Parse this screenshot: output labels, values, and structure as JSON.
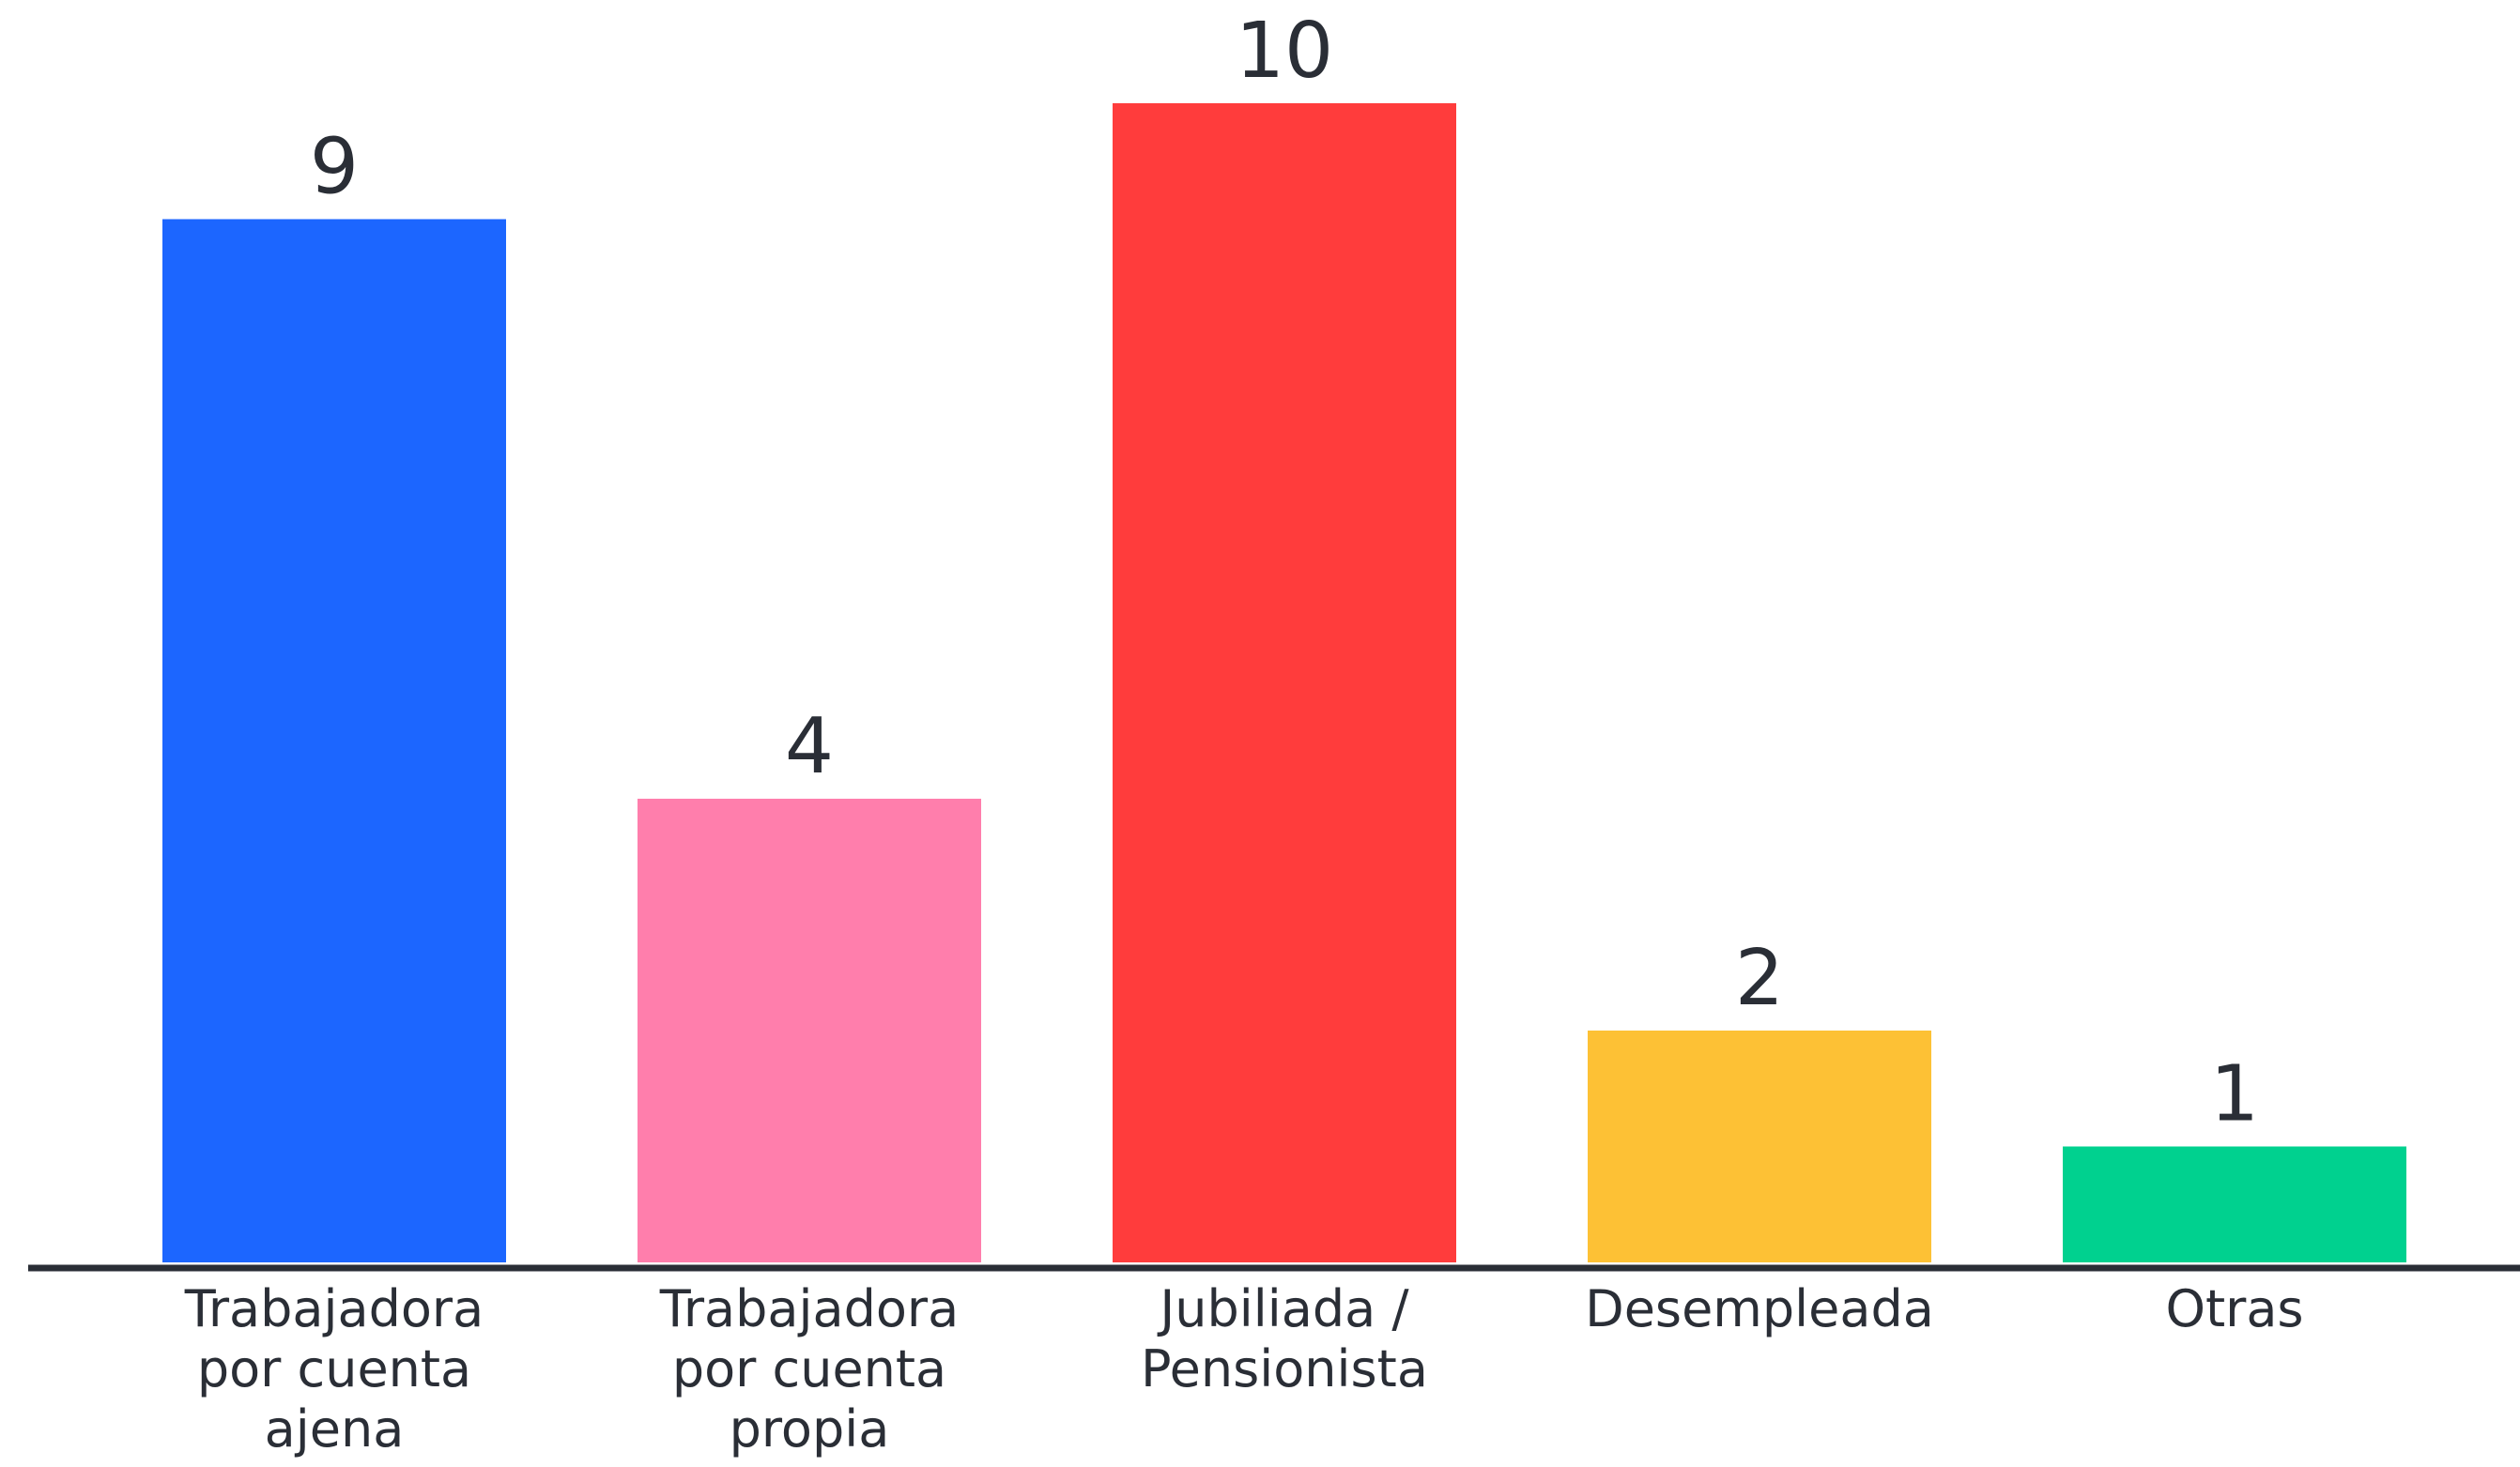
{
  "chart_data": {
    "type": "bar",
    "title": "",
    "xlabel": "",
    "ylabel": "",
    "categories": [
      [
        "Trabajadora",
        "por cuenta",
        "ajena"
      ],
      [
        "Trabajadora",
        "por cuenta",
        "propia"
      ],
      [
        "Jubiliada /",
        "Pensionista"
      ],
      [
        "Desempleada"
      ],
      [
        "Otras"
      ]
    ],
    "values": [
      9,
      4,
      10,
      2,
      1
    ],
    "data_labels": [
      "9",
      "4",
      "10",
      "2",
      "1"
    ],
    "colors": [
      "#1c66ff",
      "#ff7eac",
      "#ff3c3c",
      "#fdc135",
      "#00d18f"
    ],
    "ylim": [
      0,
      10
    ],
    "grid": false,
    "legend": "none",
    "axis_color": "#2a2e36"
  }
}
